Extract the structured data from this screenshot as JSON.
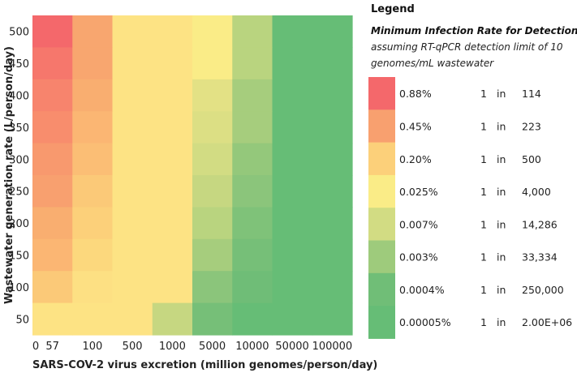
{
  "chart_data": {
    "type": "heatmap",
    "title": "",
    "xlabel": "SARS-COV-2 virus excretion (million genomes/person/day)",
    "ylabel": "Wastewater generation rate (L/person/day)",
    "x_tick_labels": [
      "0",
      "57",
      "100",
      "500",
      "1000",
      "5000",
      "10000",
      "50000",
      "100000"
    ],
    "x_categories": [
      "57",
      "100",
      "500",
      "1000",
      "5000",
      "10000",
      "50000",
      "100000"
    ],
    "y_categories": [
      "500",
      "450",
      "400",
      "350",
      "300",
      "250",
      "200",
      "150",
      "100",
      "50"
    ],
    "colors_by_row": [
      [
        "#f4686b",
        "#f8a66f",
        "#fde384",
        "#fde384",
        "#faec87",
        "#b9d47f",
        "#66bd76",
        "#66bd76"
      ],
      [
        "#f6776c",
        "#f8a66f",
        "#fde384",
        "#fde384",
        "#faec87",
        "#b9d47f",
        "#66bd76",
        "#66bd76"
      ],
      [
        "#f7846d",
        "#f9ae70",
        "#fde384",
        "#fde384",
        "#e3e185",
        "#a6cd7d",
        "#66bd76",
        "#66bd76"
      ],
      [
        "#f88d6d",
        "#fbb673",
        "#fde384",
        "#fde384",
        "#dcdf84",
        "#a6cd7d",
        "#66bd76",
        "#66bd76"
      ],
      [
        "#f8996e",
        "#fbbe75",
        "#fde384",
        "#fde384",
        "#d2dc83",
        "#94c87b",
        "#66bd76",
        "#66bd76"
      ],
      [
        "#f8a06f",
        "#fbc978",
        "#fde384",
        "#fde384",
        "#c6d781",
        "#8bc57b",
        "#66bd76",
        "#66bd76"
      ],
      [
        "#f9ae70",
        "#fcd07a",
        "#fde384",
        "#fde384",
        "#b9d47f",
        "#7fc279",
        "#66bd76",
        "#66bd76"
      ],
      [
        "#fbb673",
        "#fcd87d",
        "#fde384",
        "#fde384",
        "#a6cd7d",
        "#76bf78",
        "#66bd76",
        "#66bd76"
      ],
      [
        "#fbc978",
        "#fde083",
        "#fde384",
        "#fde384",
        "#8bc57b",
        "#6fbd77",
        "#66bd76",
        "#66bd76"
      ],
      [
        "#fde384",
        "#fde384",
        "#fde384",
        "#c6d781",
        "#76bf78",
        "#66bd76",
        "#66bd76",
        "#66bd76"
      ]
    ],
    "legend": {
      "title": "Legend",
      "subtitle_bold": "Minimum Infection Rate for Detection",
      "subtitle_lines": [
        "assuming RT-qPCR detection limit of 10",
        "genomes/mL wastewater"
      ],
      "entries": [
        {
          "color": "#f4686b",
          "rate": "0.88%",
          "one": "1",
          "in": "in",
          "count": "114"
        },
        {
          "color": "#f8a06f",
          "rate": "0.45%",
          "one": "1",
          "in": "in",
          "count": "223"
        },
        {
          "color": "#fcd07a",
          "rate": "0.20%",
          "one": "1",
          "in": "in",
          "count": "500"
        },
        {
          "color": "#faec87",
          "rate": "0.025%",
          "one": "1",
          "in": "in",
          "count": "4,000"
        },
        {
          "color": "#d2dc83",
          "rate": "0.007%",
          "one": "1",
          "in": "in",
          "count": "14,286"
        },
        {
          "color": "#9ecb7c",
          "rate": "0.003%",
          "one": "1",
          "in": "in",
          "count": "33,334"
        },
        {
          "color": "#70be77",
          "rate": "0.0004%",
          "one": "1",
          "in": "in",
          "count": "250,000"
        },
        {
          "color": "#66bd76",
          "rate": "0.00005%",
          "one": "1",
          "in": "in",
          "count": "2.00E+06"
        }
      ]
    }
  }
}
